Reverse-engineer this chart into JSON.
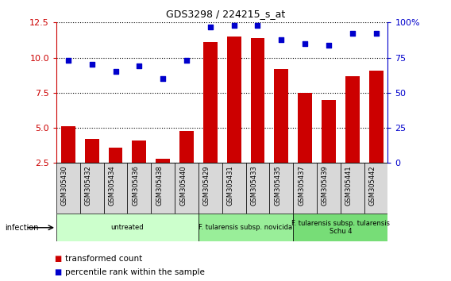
{
  "title": "GDS3298 / 224215_s_at",
  "categories": [
    "GSM305430",
    "GSM305432",
    "GSM305434",
    "GSM305436",
    "GSM305438",
    "GSM305440",
    "GSM305429",
    "GSM305431",
    "GSM305433",
    "GSM305435",
    "GSM305437",
    "GSM305439",
    "GSM305441",
    "GSM305442"
  ],
  "bar_values": [
    5.1,
    4.2,
    3.6,
    4.1,
    2.8,
    4.8,
    11.1,
    11.5,
    11.4,
    9.2,
    7.5,
    7.0,
    8.7,
    9.1
  ],
  "scatter_values": [
    73,
    70,
    65,
    69,
    60,
    73,
    97,
    98,
    98,
    88,
    85,
    84,
    92,
    92
  ],
  "bar_color": "#cc0000",
  "scatter_color": "#0000cc",
  "ylim_left": [
    2.5,
    12.5
  ],
  "ylim_right": [
    0,
    100
  ],
  "yticks_left": [
    2.5,
    5.0,
    7.5,
    10.0,
    12.5
  ],
  "yticks_right": [
    0,
    25,
    50,
    75,
    100
  ],
  "ytick_labels_right": [
    "0",
    "25",
    "50",
    "75",
    "100%"
  ],
  "groups": [
    {
      "label": "untreated",
      "start": 0,
      "end": 6,
      "color": "#ccffcc"
    },
    {
      "label": "F. tularensis subsp. novicida",
      "start": 6,
      "end": 10,
      "color": "#99ee99"
    },
    {
      "label": "F. tularensis subsp. tularensis\nSchu 4",
      "start": 10,
      "end": 14,
      "color": "#77dd77"
    }
  ],
  "infection_label": "infection",
  "legend_bar_label": "transformed count",
  "legend_scatter_label": "percentile rank within the sample",
  "background_color": "#ffffff",
  "plot_bg": "#ffffff",
  "xlabel_color": "#cc0000",
  "ylabel_right_color": "#0000cc"
}
